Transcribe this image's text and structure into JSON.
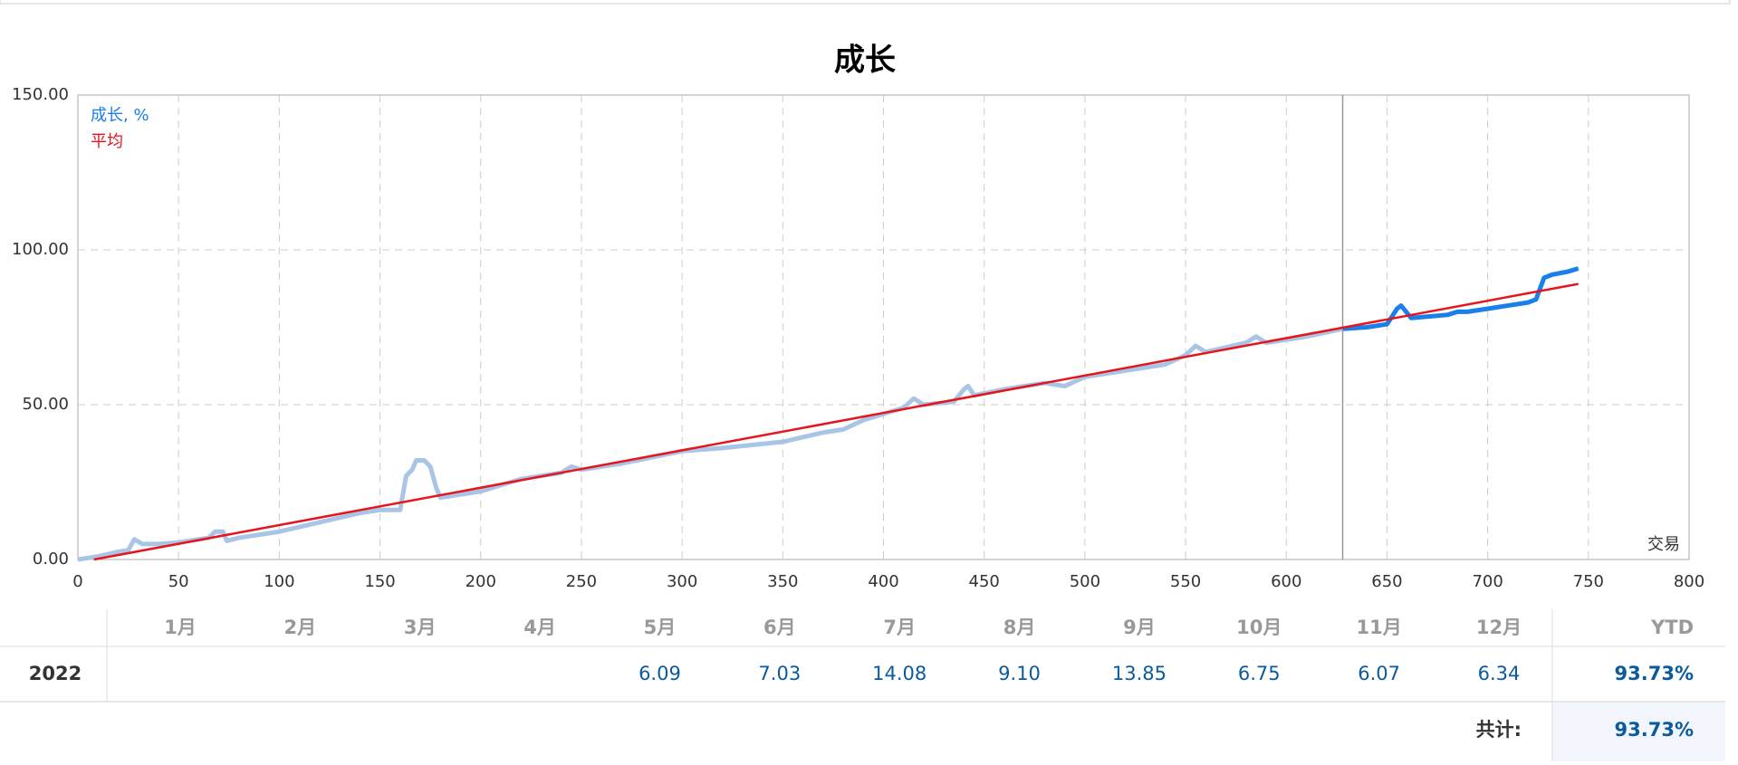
{
  "chart_data": {
    "type": "line",
    "title": "成长",
    "xlabel": "交易",
    "xlim": [
      0,
      800
    ],
    "ylim": [
      0,
      150
    ],
    "xticks": [
      0,
      50,
      100,
      150,
      200,
      250,
      300,
      350,
      400,
      450,
      500,
      550,
      600,
      650,
      700,
      750,
      800
    ],
    "yticks": [
      {
        "value": 0,
        "label": "0.00"
      },
      {
        "value": 50,
        "label": "50.00"
      },
      {
        "value": 100,
        "label": "100.00"
      },
      {
        "value": 150,
        "label": "150.00"
      }
    ],
    "grid": true,
    "divider_x": 628,
    "series": [
      {
        "name": "成长, %",
        "color": "#1a7fe8",
        "past_color": "#a9c5e6",
        "x": [
          0,
          10,
          20,
          25,
          28,
          32,
          40,
          50,
          60,
          65,
          68,
          72,
          74,
          80,
          100,
          120,
          140,
          150,
          160,
          163,
          166,
          168,
          172,
          175,
          178,
          180,
          200,
          210,
          220,
          240,
          245,
          250,
          270,
          300,
          320,
          350,
          370,
          380,
          390,
          410,
          415,
          420,
          435,
          440,
          442,
          445,
          460,
          480,
          490,
          500,
          520,
          540,
          550,
          555,
          560,
          580,
          585,
          590,
          610,
          628,
          640,
          650,
          655,
          657,
          662,
          680,
          685,
          690,
          700,
          710,
          720,
          724,
          728,
          732,
          740,
          745
        ],
        "values": [
          0,
          1,
          2.5,
          3,
          6.5,
          5,
          5,
          5.5,
          6.5,
          7,
          9,
          9,
          6,
          7,
          9,
          12,
          15,
          16,
          16,
          27,
          29,
          32,
          32,
          30,
          23,
          20,
          22,
          24,
          26,
          28,
          30,
          29,
          31,
          35,
          36,
          38,
          41,
          42,
          45,
          49,
          52,
          50,
          51,
          55,
          56,
          53,
          55,
          57,
          56,
          59,
          61,
          63,
          66,
          69,
          67,
          70,
          72,
          70,
          72,
          74.5,
          75,
          76,
          81,
          82,
          78,
          79,
          80,
          80,
          81,
          82,
          83,
          84,
          91,
          92,
          93,
          94
        ]
      },
      {
        "name": "平均",
        "color": "#e8141c",
        "x": [
          8,
          745
        ],
        "values": [
          0,
          89
        ]
      }
    ]
  },
  "table": {
    "header": [
      "1月",
      "2月",
      "3月",
      "4月",
      "5月",
      "6月",
      "7月",
      "8月",
      "9月",
      "10月",
      "11月",
      "12月",
      "YTD"
    ],
    "rows": [
      [
        "2022",
        null,
        null,
        null,
        null,
        "6.09",
        "7.03",
        "14.08",
        "9.10",
        "13.85",
        "6.75",
        "6.07",
        "6.34",
        "93.73%"
      ]
    ],
    "total_label": "共计:",
    "total": "93.73%"
  }
}
